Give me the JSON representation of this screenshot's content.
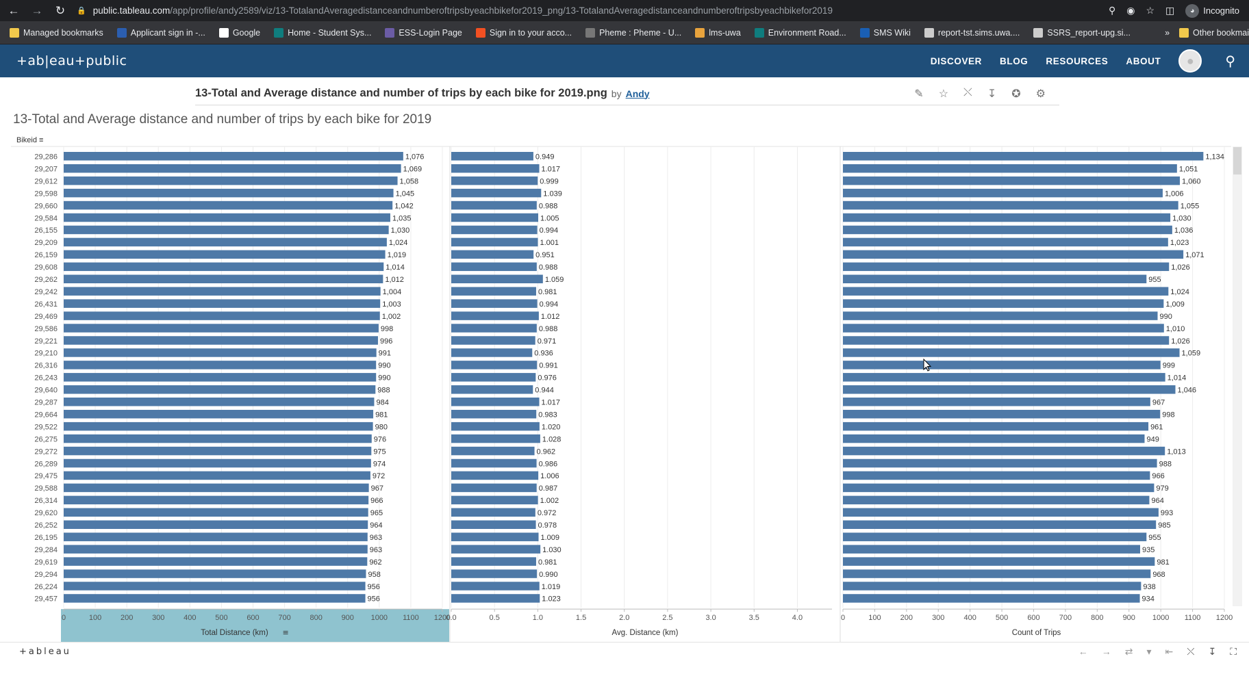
{
  "browser": {
    "url_host": "public.tableau.com",
    "url_path": "/app/profile/andy2589/viz/13-TotalandAveragedistanceandnumberoftripsbyeachbikefor2019_png/13-TotalandAveragedistanceandnumberoftripsbyeachbikefor2019",
    "incognito_label": "Incognito",
    "bookmarks": [
      {
        "label": "Managed bookmarks",
        "icon": "folder-icon",
        "color": "#f2c94c"
      },
      {
        "label": "Applicant sign in -...",
        "icon": "diamond-icon",
        "color": "#2b5eb0"
      },
      {
        "label": "Google",
        "icon": "google-icon",
        "color": "#ffffff"
      },
      {
        "label": "Home - Student Sys...",
        "icon": "s-icon",
        "color": "#0f7d7e"
      },
      {
        "label": "ESS-Login Page",
        "icon": "crest-icon",
        "color": "#6b5ca5"
      },
      {
        "label": "Sign in to your acco...",
        "icon": "windows-icon",
        "color": "#f25022"
      },
      {
        "label": "Pheme : Pheme - U...",
        "icon": "globe-icon",
        "color": "#777777"
      },
      {
        "label": "lms-uwa",
        "icon": "lms-icon",
        "color": "#e8a33d"
      },
      {
        "label": "Environment Road...",
        "icon": "s-icon",
        "color": "#0f7d7e"
      },
      {
        "label": "SMS Wiki",
        "icon": "x-icon",
        "color": "#1a5fb4"
      },
      {
        "label": "report-tst.sims.uwa....",
        "icon": "report-icon",
        "color": "#cccccc"
      },
      {
        "label": "SSRS_report-upg.si...",
        "icon": "report-icon",
        "color": "#cccccc"
      }
    ],
    "more_bookmarks": "»",
    "other_bookmarks": "Other bookmai"
  },
  "header": {
    "logo": "+ab|eau+public",
    "nav": [
      "DISCOVER",
      "BLOG",
      "RESOURCES",
      "ABOUT"
    ]
  },
  "viz": {
    "title": "13-Total and Average distance and number of trips by each bike for 2019.png",
    "by": "by",
    "author": "Andy",
    "sheet_title": "13-Total and Average distance and number of trips by each bike for 2019",
    "bikeid_header": "Bikeid"
  },
  "footer": {
    "logo": "+ableau"
  },
  "chart_data": {
    "type": "bar",
    "orientation": "horizontal",
    "bar_color": "#4e79a7",
    "highlight_color": "#8fc3cf",
    "categories": [
      "29,286",
      "29,207",
      "29,612",
      "29,598",
      "29,660",
      "29,584",
      "26,155",
      "29,209",
      "26,159",
      "29,608",
      "29,262",
      "29,242",
      "26,431",
      "29,469",
      "29,586",
      "29,221",
      "29,210",
      "26,316",
      "26,243",
      "29,640",
      "29,287",
      "29,664",
      "29,522",
      "26,275",
      "29,272",
      "26,289",
      "29,475",
      "29,588",
      "26,314",
      "29,620",
      "26,252",
      "26,195",
      "29,284",
      "29,619",
      "29,294",
      "26,224",
      "29,457"
    ],
    "panes": [
      {
        "name": "Total Distance (km)",
        "xlabel": "Total Distance (km)",
        "ticks": [
          0,
          100,
          200,
          300,
          400,
          500,
          600,
          700,
          800,
          900,
          1000,
          1100,
          1200
        ],
        "xlim": [
          0,
          1200
        ],
        "sorted": true,
        "values": [
          1076,
          1069,
          1058,
          1045,
          1042,
          1035,
          1030,
          1024,
          1019,
          1014,
          1012,
          1004,
          1003,
          1002,
          998,
          996,
          991,
          990,
          990,
          988,
          984,
          981,
          980,
          976,
          975,
          974,
          972,
          967,
          966,
          965,
          964,
          963,
          963,
          962,
          958,
          956,
          956
        ],
        "labels": [
          "1,076",
          "1,069",
          "1,058",
          "1,045",
          "1,042",
          "1,035",
          "1,030",
          "1,024",
          "1,019",
          "1,014",
          "1,012",
          "1,004",
          "1,003",
          "1,002",
          "998",
          "996",
          "991",
          "990",
          "990",
          "988",
          "984",
          "981",
          "980",
          "976",
          "975",
          "974",
          "972",
          "967",
          "966",
          "965",
          "964",
          "963",
          "963",
          "962",
          "958",
          "956",
          "956"
        ]
      },
      {
        "name": "Avg. Distance (km)",
        "xlabel": "Avg. Distance (km)",
        "ticks": [
          0.0,
          0.5,
          1.0,
          1.5,
          2.0,
          2.5,
          3.0,
          3.5,
          4.0
        ],
        "tick_labels": [
          "0.0",
          "0.5",
          "1.0",
          "1.5",
          "2.0",
          "2.5",
          "3.0",
          "3.5",
          "4.0"
        ],
        "xlim": [
          0,
          4.4
        ],
        "sorted": false,
        "values": [
          0.949,
          1.017,
          0.999,
          1.039,
          0.988,
          1.005,
          0.994,
          1.001,
          0.951,
          0.988,
          1.059,
          0.981,
          0.994,
          1.012,
          0.988,
          0.971,
          0.936,
          0.991,
          0.976,
          0.944,
          1.017,
          0.983,
          1.02,
          1.028,
          0.962,
          0.986,
          1.006,
          0.987,
          1.002,
          0.972,
          0.978,
          1.009,
          1.03,
          0.981,
          0.99,
          1.019,
          1.023
        ],
        "labels": [
          "0.949",
          "1.017",
          "0.999",
          "1.039",
          "0.988",
          "1.005",
          "0.994",
          "1.001",
          "0.951",
          "0.988",
          "1.059",
          "0.981",
          "0.994",
          "1.012",
          "0.988",
          "0.971",
          "0.936",
          "0.991",
          "0.976",
          "0.944",
          "1.017",
          "0.983",
          "1.020",
          "1.028",
          "0.962",
          "0.986",
          "1.006",
          "0.987",
          "1.002",
          "0.972",
          "0.978",
          "1.009",
          "1.030",
          "0.981",
          "0.990",
          "1.019",
          "1.023"
        ]
      },
      {
        "name": "Count of Trips",
        "xlabel": "Count of Trips",
        "ticks": [
          0,
          100,
          200,
          300,
          400,
          500,
          600,
          700,
          800,
          900,
          1000,
          1100,
          1200
        ],
        "xlim": [
          0,
          1200
        ],
        "sorted": false,
        "values": [
          1134,
          1051,
          1060,
          1006,
          1055,
          1030,
          1036,
          1023,
          1071,
          1026,
          955,
          1024,
          1009,
          990,
          1010,
          1026,
          1059,
          999,
          1014,
          1046,
          967,
          998,
          961,
          949,
          1013,
          988,
          966,
          979,
          964,
          993,
          985,
          955,
          935,
          981,
          968,
          938,
          934
        ],
        "labels": [
          "1,134",
          "1,051",
          "1,060",
          "1,006",
          "1,055",
          "1,030",
          "1,036",
          "1,023",
          "1,071",
          "1,026",
          "955",
          "1,024",
          "1,009",
          "990",
          "1,010",
          "1,026",
          "1,059",
          "999",
          "1,014",
          "1,046",
          "967",
          "998",
          "961",
          "949",
          "1,013",
          "988",
          "966",
          "979",
          "964",
          "993",
          "985",
          "955",
          "935",
          "981",
          "968",
          "938",
          "934"
        ]
      }
    ],
    "grid": true
  }
}
